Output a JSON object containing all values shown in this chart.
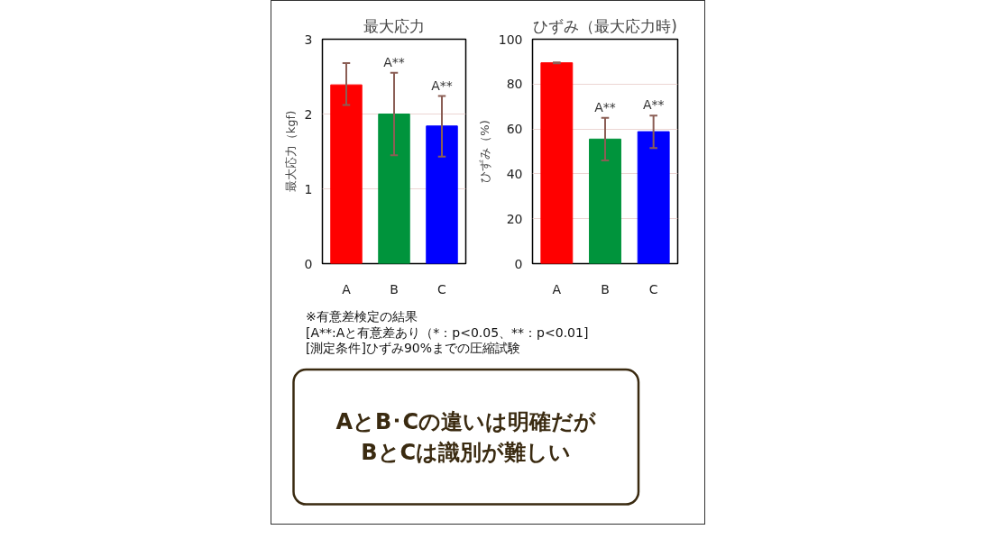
{
  "chart_data": [
    {
      "type": "bar",
      "title": "最大応力",
      "ylabel": "最大応力（kgf)",
      "categories": [
        "A",
        "B",
        "C"
      ],
      "values": [
        2.39,
        2.0,
        1.84
      ],
      "colors": [
        "#ff0000",
        "#00943c",
        "#0000ff"
      ],
      "errors": [
        [
          2.12,
          2.68
        ],
        [
          1.45,
          2.55
        ],
        [
          1.43,
          2.24
        ]
      ],
      "ylim": [
        0,
        3
      ],
      "yticks": [
        0,
        1,
        2,
        3
      ],
      "grid": "y",
      "annotations": [
        {
          "text": "A**",
          "x": "B",
          "y": 2.55
        },
        {
          "text": "A**",
          "x": "C",
          "y": 2.24
        }
      ]
    },
    {
      "type": "bar",
      "title": "ひずみ（最大応力時)",
      "ylabel": "ひずみ（%)",
      "categories": [
        "A",
        "B",
        "C"
      ],
      "values": [
        89.5,
        55.5,
        58.8
      ],
      "colors": [
        "#ff0000",
        "#00943c",
        "#0000ff"
      ],
      "errors": [
        [
          89.3,
          89.7
        ],
        [
          46,
          65
        ],
        [
          51.5,
          66
        ]
      ],
      "ylim": [
        0,
        100
      ],
      "yticks": [
        0,
        20,
        40,
        60,
        80,
        100
      ],
      "grid": "y",
      "annotations": [
        {
          "text": "A**",
          "x": "B",
          "y": 65
        },
        {
          "text": "A**",
          "x": "C",
          "y": 66
        }
      ]
    },
    {
      "type": "other",
      "title": "AとB･Cの違いは明確だが\nBとCは識別が難しい",
      "annotations": [
        "※有意差検定の結果",
        "[A**:Aと有意差あり（*：p<0.05、**：p<0.01]",
        "[測定条件]ひずみ90%までの圧縮試験"
      ]
    }
  ]
}
